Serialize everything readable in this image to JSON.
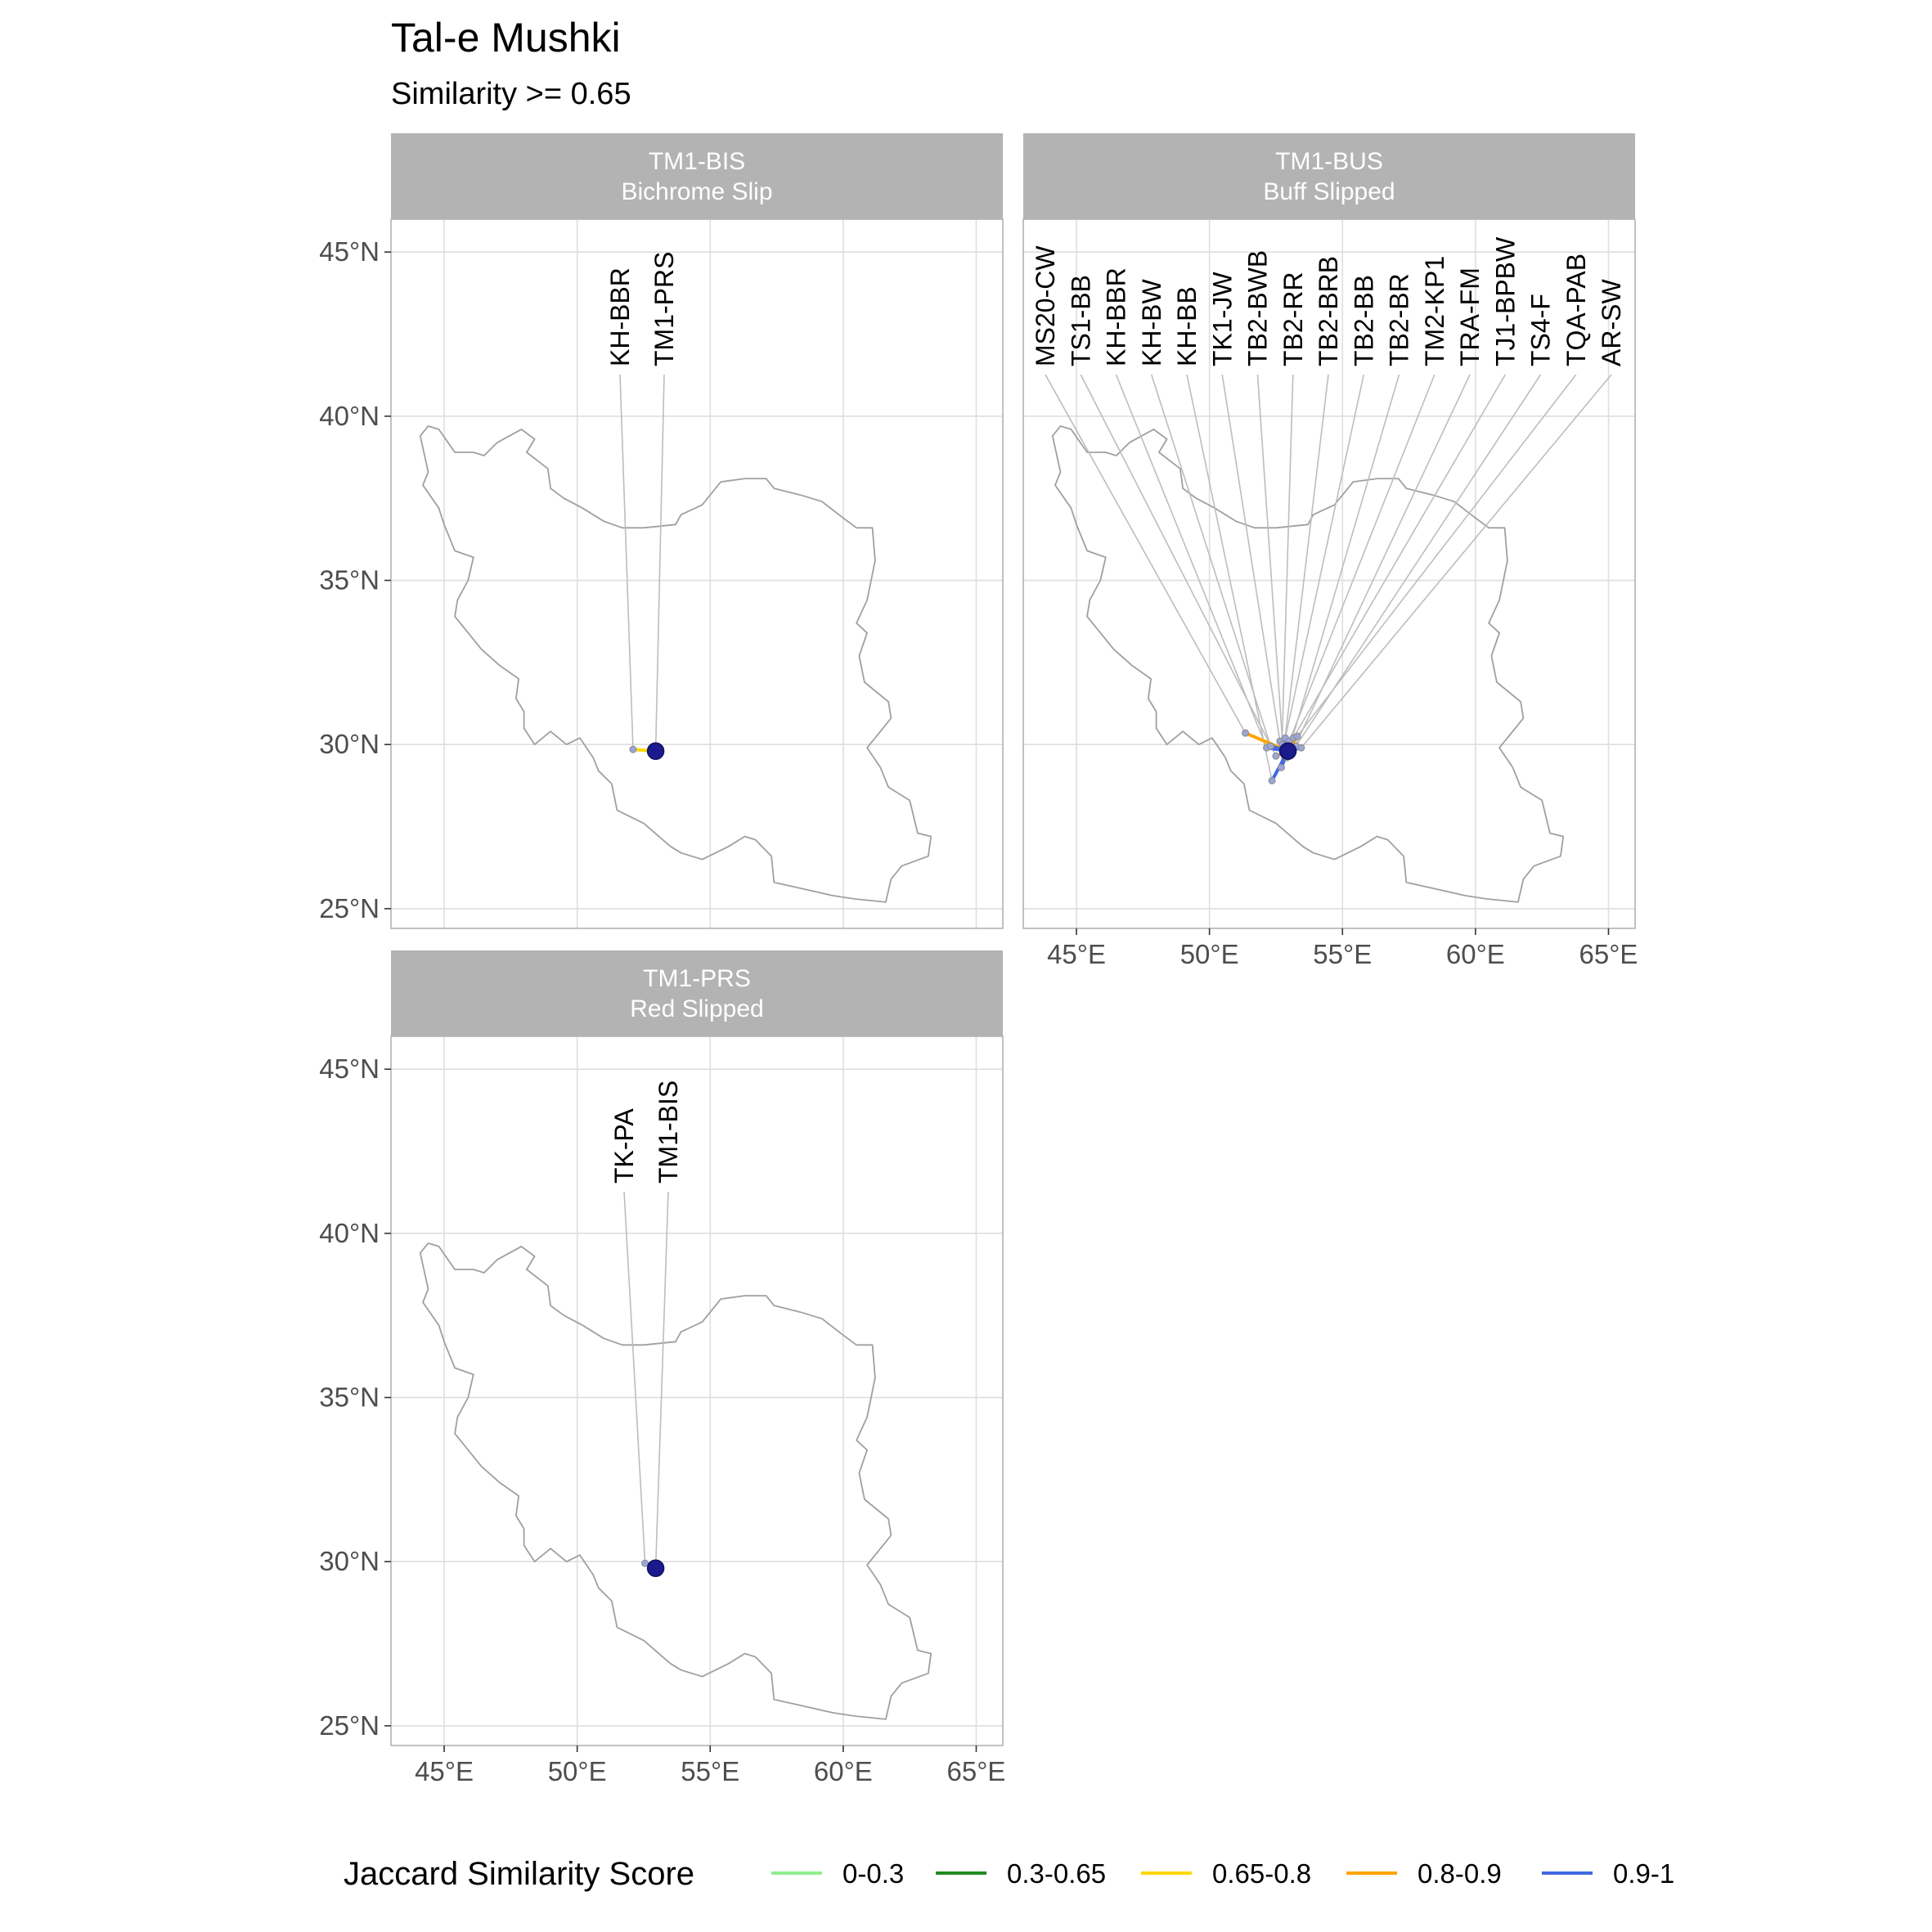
{
  "title": "Tal-e Mushki",
  "subtitle": "Similarity >= 0.65",
  "chart_data": {
    "type": "map",
    "x_range": [
      43,
      66
    ],
    "y_range": [
      24.4,
      46
    ],
    "x_ticks": [
      45,
      50,
      55,
      60,
      65
    ],
    "x_tick_labels": [
      "45°E",
      "50°E",
      "55°E",
      "60°E",
      "65°E"
    ],
    "y_ticks": [
      25,
      30,
      35,
      40,
      45
    ],
    "y_tick_labels": [
      "25°N",
      "30°N",
      "35°N",
      "40°N",
      "45°N"
    ],
    "grid": true,
    "site": {
      "lon": 52.95,
      "lat": 29.8
    },
    "panels": [
      {
        "code": "TM1-BIS",
        "name": "Bichrome Slip",
        "links": [
          {
            "label": "KH-BBR",
            "lon": 52.1,
            "lat": 29.85,
            "category": "0.65-0.8"
          },
          {
            "label": "TM1-PRS",
            "lon": 52.95,
            "lat": 29.8,
            "category": "0.9-1"
          }
        ]
      },
      {
        "code": "TM1-BUS",
        "name": "Buff Slipped",
        "links": [
          {
            "label": "MS20-CW",
            "lon": 51.35,
            "lat": 30.35,
            "category": "0.8-0.9"
          },
          {
            "label": "TS1-BB",
            "lon": 52.5,
            "lat": 29.65,
            "category": "0.8-0.9"
          },
          {
            "label": "KH-BBR",
            "lon": 52.15,
            "lat": 29.9,
            "category": "0.9-1"
          },
          {
            "label": "KH-BW",
            "lon": 52.3,
            "lat": 29.95,
            "category": "0.9-1"
          },
          {
            "label": "KH-BB",
            "lon": 52.35,
            "lat": 28.9,
            "category": "0.9-1"
          },
          {
            "label": "TK1-JW",
            "lon": 52.65,
            "lat": 30.1,
            "category": "0.9-1"
          },
          {
            "label": "TB2-BWB",
            "lon": 52.75,
            "lat": 30.0,
            "category": "0.9-1"
          },
          {
            "label": "TB2-RR",
            "lon": 52.7,
            "lat": 29.3,
            "category": "0.9-1"
          },
          {
            "label": "TB2-BRB",
            "lon": 52.8,
            "lat": 29.9,
            "category": "0.9-1"
          },
          {
            "label": "TB2-BB",
            "lon": 52.85,
            "lat": 30.2,
            "category": "0.9-1"
          },
          {
            "label": "TB2-BR",
            "lon": 52.9,
            "lat": 29.6,
            "category": "0.9-1"
          },
          {
            "label": "TM2-KP1",
            "lon": 53.0,
            "lat": 30.1,
            "category": "0.9-1"
          },
          {
            "label": "TRA-FM",
            "lon": 53.1,
            "lat": 29.75,
            "category": "0.9-1"
          },
          {
            "label": "TJ1-BPBW",
            "lon": 53.15,
            "lat": 30.2,
            "category": "0.8-0.9"
          },
          {
            "label": "TS4-F",
            "lon": 53.25,
            "lat": 29.95,
            "category": "0.9-1"
          },
          {
            "label": "TQA-PAB",
            "lon": 53.3,
            "lat": 30.25,
            "category": "0.8-0.9"
          },
          {
            "label": "AR-SW",
            "lon": 53.45,
            "lat": 29.9,
            "category": "0.9-1"
          }
        ]
      },
      {
        "code": "TM1-PRS",
        "name": "Red Slipped",
        "links": [
          {
            "label": "TK-PA",
            "lon": 52.55,
            "lat": 29.95,
            "category": "0.8-0.9"
          },
          {
            "label": "TM1-BIS",
            "lon": 52.95,
            "lat": 29.8,
            "category": "0.9-1"
          }
        ]
      }
    ],
    "legend": {
      "title": "Jaccard Similarity Score",
      "position": "bottom",
      "items": [
        {
          "label": "0-0.3",
          "color": "#90ee90"
        },
        {
          "label": "0.3-0.65",
          "color": "#228b22"
        },
        {
          "label": "0.65-0.8",
          "color": "#ffd700"
        },
        {
          "label": "0.8-0.9",
          "color": "#ffa500"
        },
        {
          "label": "0.9-1",
          "color": "#4169e1"
        }
      ]
    }
  }
}
